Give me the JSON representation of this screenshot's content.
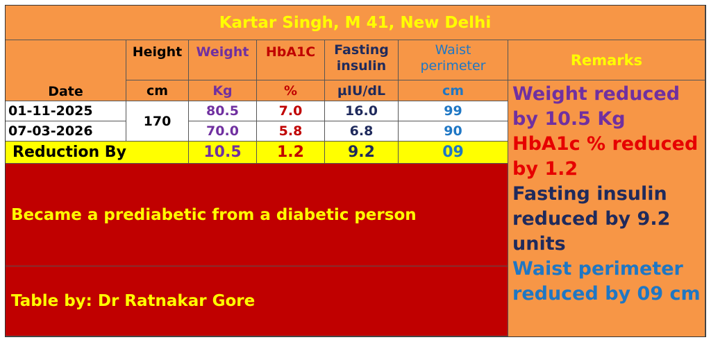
{
  "title": "Kartar Singh, M 41, New Delhi",
  "colors": {
    "sheet_bg": "#f79646",
    "title_text": "#ffff00",
    "weight": "#7030a0",
    "hba1c": "#c00000",
    "insulin": "#1f2a5c",
    "waist": "#1f77c4",
    "reduction_bg": "#ffff00",
    "notes_bg": "#c00000"
  },
  "headers": {
    "date": "Date",
    "height": "Height",
    "weight": "Weight",
    "hba1c": "HbA1C",
    "fasting_line1": "Fasting",
    "fasting_line2": "insulin",
    "waist_line1": "Waist",
    "waist_line2": "perimeter",
    "remarks": "Remarks"
  },
  "units": {
    "height": "cm",
    "weight": "Kg",
    "hba1c": "%",
    "insulin": "µIU/dL",
    "waist": "cm"
  },
  "rows": [
    {
      "date": "01-11-2025",
      "weight": "80.5",
      "hba1c": "7.0",
      "insulin": "16.0",
      "waist": "99"
    },
    {
      "date": "07-03-2026",
      "weight": "70.0",
      "hba1c": "5.8",
      "insulin": "6.8",
      "waist": "90"
    }
  ],
  "height_value": "170",
  "reduction": {
    "label": "Reduction By",
    "weight": "10.5",
    "hba1c": "1.2",
    "insulin": "9.2",
    "waist": "09"
  },
  "remarks": [
    "Weight reduced by 10.5 Kg",
    "HbA1c % reduced by 1.2",
    "Fasting insulin reduced by 9.2 units",
    "Waist perimeter reduced by 09 cm"
  ],
  "notes": {
    "status": "Became a prediabetic from a diabetic person",
    "credit": "Table by: Dr Ratnakar Gore"
  }
}
